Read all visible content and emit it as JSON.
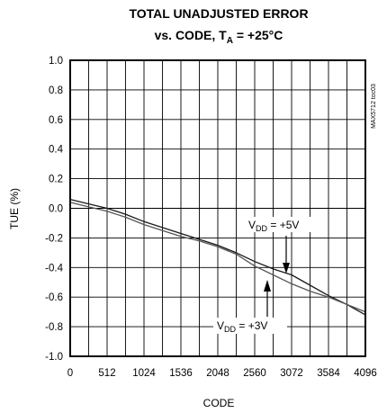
{
  "chart_data": {
    "type": "line",
    "title_line1": "TOTAL UNADJUSTED ERROR",
    "title_line2_prefix": "vs.  CODE, T",
    "title_line2_sub": "A",
    "title_line2_suffix": " = +25°C",
    "xlabel": "CODE",
    "ylabel": "TUE (%)",
    "xlim": [
      0,
      4096
    ],
    "ylim": [
      -1.0,
      1.0
    ],
    "x_ticks": [
      "0",
      "512",
      "1024",
      "1536",
      "2048",
      "2560",
      "3072",
      "3584",
      "4096"
    ],
    "y_ticks": [
      "1.0",
      "0.8",
      "0.6",
      "0.4",
      "0.2",
      "0.0",
      "-0.2",
      "-0.4",
      "-0.6",
      "-0.8",
      "-1.0"
    ],
    "grid": true,
    "side_label": "MAX5712 toc03",
    "annotations": [
      {
        "prefix": "V",
        "sub": "DD",
        "suffix": " = +5V",
        "points_to": 3000
      },
      {
        "prefix": "V",
        "sub": "DD",
        "suffix": " = +3V",
        "points_to": 2800
      }
    ],
    "series": [
      {
        "x": [
          0,
          256,
          512,
          768,
          1024,
          1280,
          1536,
          1792,
          2048,
          2304,
          2560,
          2816,
          3072,
          3328,
          3584,
          3840,
          4096
        ],
        "values": [
          0.06,
          0.03,
          0.0,
          -0.04,
          -0.09,
          -0.13,
          -0.17,
          -0.21,
          -0.25,
          -0.3,
          -0.36,
          -0.41,
          -0.45,
          -0.52,
          -0.59,
          -0.65,
          -0.72
        ]
      },
      {
        "x": [
          0,
          256,
          512,
          768,
          1024,
          1280,
          1536,
          1792,
          2048,
          2304,
          2560,
          2816,
          3072,
          3328,
          3584,
          3840,
          4096
        ],
        "values": [
          0.04,
          0.01,
          -0.02,
          -0.06,
          -0.11,
          -0.15,
          -0.19,
          -0.22,
          -0.26,
          -0.31,
          -0.39,
          -0.45,
          -0.51,
          -0.56,
          -0.6,
          -0.65,
          -0.7
        ]
      }
    ]
  }
}
